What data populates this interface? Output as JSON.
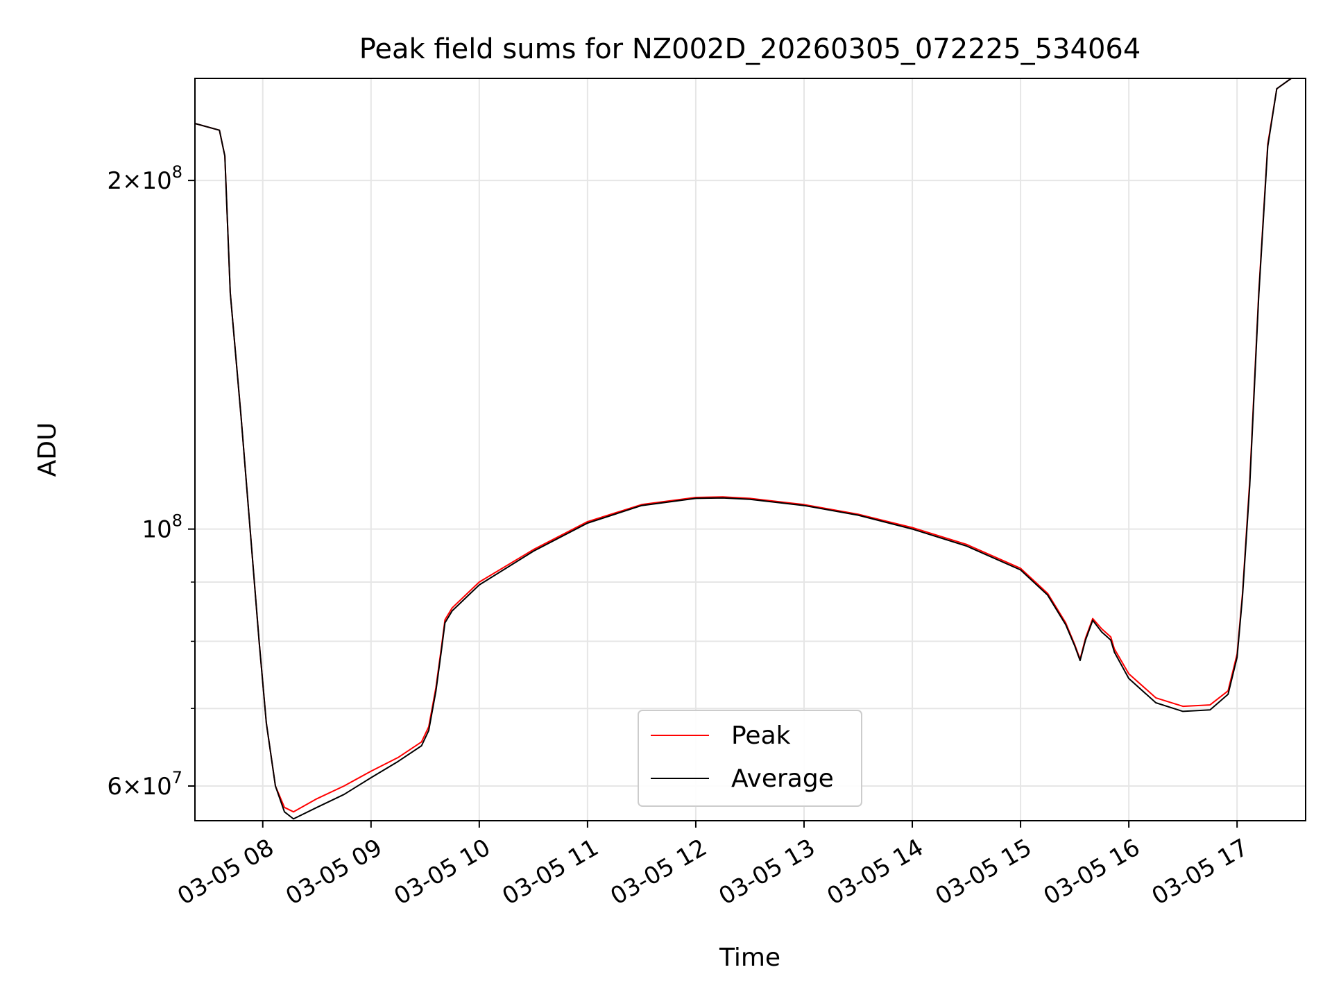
{
  "chart_data": {
    "type": "line",
    "title": "Peak field sums for NZ002D_20260305_072225_534064",
    "xlabel": "Time",
    "ylabel": "ADU",
    "yscale": "log",
    "xlim": [
      "2026-03-05 07:22:25",
      "2026-03-05 17:38:00"
    ],
    "ylim": [
      56000000,
      245000000
    ],
    "grid": true,
    "legend": {
      "position": "lower center"
    },
    "x_ticks": [
      "03-05 08",
      "03-05 09",
      "03-05 10",
      "03-05 11",
      "03-05 12",
      "03-05 13",
      "03-05 14",
      "03-05 15",
      "03-05 16",
      "03-05 17"
    ],
    "y_major_ticks": [
      {
        "value": 60000000,
        "mantissa": "6",
        "exponent": "7"
      },
      {
        "value": 100000000,
        "mantissa": "",
        "exponent": "8"
      },
      {
        "value": 200000000,
        "mantissa": "2",
        "exponent": "8"
      }
    ],
    "y_minor_ticks": [
      70000000,
      80000000,
      90000000
    ],
    "series": [
      {
        "name": "Peak",
        "color": "#ff0000",
        "points": [
          [
            "2026-03-05 07:22:25",
            224000000
          ],
          [
            "2026-03-05 07:36:00",
            221000000
          ],
          [
            "2026-03-05 07:39:00",
            210000000
          ],
          [
            "2026-03-05 07:42:00",
            160000000
          ],
          [
            "2026-03-05 07:48:00",
            125000000
          ],
          [
            "2026-03-05 07:53:00",
            100000000
          ],
          [
            "2026-03-05 07:58:00",
            80000000
          ],
          [
            "2026-03-05 08:02:00",
            68000000
          ],
          [
            "2026-03-05 08:07:00",
            60000000
          ],
          [
            "2026-03-05 08:12:00",
            57500000
          ],
          [
            "2026-03-05 08:17:00",
            57000000
          ],
          [
            "2026-03-05 08:30:00",
            58500000
          ],
          [
            "2026-03-05 08:45:00",
            60000000
          ],
          [
            "2026-03-05 09:00:00",
            61800000
          ],
          [
            "2026-03-05 09:15:00",
            63500000
          ],
          [
            "2026-03-05 09:28:00",
            65500000
          ],
          [
            "2026-03-05 09:32:00",
            67500000
          ],
          [
            "2026-03-05 09:36:00",
            73000000
          ],
          [
            "2026-03-05 09:39:00",
            79000000
          ],
          [
            "2026-03-05 09:41:00",
            83500000
          ],
          [
            "2026-03-05 09:45:00",
            85500000
          ],
          [
            "2026-03-05 10:00:00",
            90000000
          ],
          [
            "2026-03-05 10:30:00",
            96000000
          ],
          [
            "2026-03-05 11:00:00",
            101500000
          ],
          [
            "2026-03-05 11:30:00",
            105000000
          ],
          [
            "2026-03-05 12:00:00",
            106500000
          ],
          [
            "2026-03-05 12:15:00",
            106600000
          ],
          [
            "2026-03-05 12:30:00",
            106300000
          ],
          [
            "2026-03-05 13:00:00",
            105000000
          ],
          [
            "2026-03-05 13:30:00",
            103000000
          ],
          [
            "2026-03-05 14:00:00",
            100300000
          ],
          [
            "2026-03-05 14:30:00",
            97000000
          ],
          [
            "2026-03-05 15:00:00",
            92500000
          ],
          [
            "2026-03-05 15:15:00",
            88000000
          ],
          [
            "2026-03-05 15:25:00",
            83000000
          ],
          [
            "2026-03-05 15:30:00",
            79500000
          ],
          [
            "2026-03-05 15:33:00",
            77200000
          ],
          [
            "2026-03-05 15:36:00",
            80500000
          ],
          [
            "2026-03-05 15:40:00",
            83700000
          ],
          [
            "2026-03-05 15:45:00",
            82000000
          ],
          [
            "2026-03-05 15:50:00",
            80700000
          ],
          [
            "2026-03-05 15:52:00",
            78800000
          ],
          [
            "2026-03-05 16:00:00",
            75000000
          ],
          [
            "2026-03-05 16:15:00",
            71500000
          ],
          [
            "2026-03-05 16:30:00",
            70300000
          ],
          [
            "2026-03-05 16:45:00",
            70500000
          ],
          [
            "2026-03-05 16:55:00",
            72500000
          ],
          [
            "2026-03-05 17:00:00",
            78000000
          ],
          [
            "2026-03-05 17:03:00",
            88000000
          ],
          [
            "2026-03-05 17:07:00",
            110000000
          ],
          [
            "2026-03-05 17:12:00",
            160000000
          ],
          [
            "2026-03-05 17:17:00",
            215000000
          ],
          [
            "2026-03-05 17:22:00",
            240000000
          ],
          [
            "2026-03-05 17:30:00",
            245000000
          ],
          [
            "2026-03-05 17:38:00",
            245000000
          ]
        ]
      },
      {
        "name": "Average",
        "color": "#000000",
        "points": [
          [
            "2026-03-05 07:22:25",
            224000000
          ],
          [
            "2026-03-05 07:36:00",
            221000000
          ],
          [
            "2026-03-05 07:39:00",
            210000000
          ],
          [
            "2026-03-05 07:42:00",
            160000000
          ],
          [
            "2026-03-05 07:48:00",
            125000000
          ],
          [
            "2026-03-05 07:53:00",
            100000000
          ],
          [
            "2026-03-05 07:58:00",
            80000000
          ],
          [
            "2026-03-05 08:02:00",
            68000000
          ],
          [
            "2026-03-05 08:07:00",
            60000000
          ],
          [
            "2026-03-05 08:12:00",
            57000000
          ],
          [
            "2026-03-05 08:17:00",
            56200000
          ],
          [
            "2026-03-05 08:30:00",
            57500000
          ],
          [
            "2026-03-05 08:45:00",
            59000000
          ],
          [
            "2026-03-05 09:00:00",
            61000000
          ],
          [
            "2026-03-05 09:15:00",
            63000000
          ],
          [
            "2026-03-05 09:28:00",
            65000000
          ],
          [
            "2026-03-05 09:32:00",
            67000000
          ],
          [
            "2026-03-05 09:36:00",
            72500000
          ],
          [
            "2026-03-05 09:39:00",
            78500000
          ],
          [
            "2026-03-05 09:41:00",
            83000000
          ],
          [
            "2026-03-05 09:45:00",
            85000000
          ],
          [
            "2026-03-05 10:00:00",
            89500000
          ],
          [
            "2026-03-05 10:30:00",
            95700000
          ],
          [
            "2026-03-05 11:00:00",
            101200000
          ],
          [
            "2026-03-05 11:30:00",
            104800000
          ],
          [
            "2026-03-05 12:00:00",
            106300000
          ],
          [
            "2026-03-05 12:15:00",
            106400000
          ],
          [
            "2026-03-05 12:30:00",
            106100000
          ],
          [
            "2026-03-05 13:00:00",
            104800000
          ],
          [
            "2026-03-05 13:30:00",
            102800000
          ],
          [
            "2026-03-05 14:00:00",
            100000000
          ],
          [
            "2026-03-05 14:30:00",
            96700000
          ],
          [
            "2026-03-05 15:00:00",
            92200000
          ],
          [
            "2026-03-05 15:15:00",
            87700000
          ],
          [
            "2026-03-05 15:25:00",
            82700000
          ],
          [
            "2026-03-05 15:30:00",
            79300000
          ],
          [
            "2026-03-05 15:33:00",
            77000000
          ],
          [
            "2026-03-05 15:36:00",
            80200000
          ],
          [
            "2026-03-05 15:40:00",
            83400000
          ],
          [
            "2026-03-05 15:45:00",
            81500000
          ],
          [
            "2026-03-05 15:50:00",
            80200000
          ],
          [
            "2026-03-05 15:52:00",
            78300000
          ],
          [
            "2026-03-05 16:00:00",
            74300000
          ],
          [
            "2026-03-05 16:15:00",
            70800000
          ],
          [
            "2026-03-05 16:30:00",
            69600000
          ],
          [
            "2026-03-05 16:45:00",
            69800000
          ],
          [
            "2026-03-05 16:55:00",
            72000000
          ],
          [
            "2026-03-05 17:00:00",
            77500000
          ],
          [
            "2026-03-05 17:03:00",
            87500000
          ],
          [
            "2026-03-05 17:07:00",
            109000000
          ],
          [
            "2026-03-05 17:12:00",
            159000000
          ],
          [
            "2026-03-05 17:17:00",
            214000000
          ],
          [
            "2026-03-05 17:22:00",
            240000000
          ],
          [
            "2026-03-05 17:30:00",
            245000000
          ],
          [
            "2026-03-05 17:38:00",
            245000000
          ]
        ]
      }
    ]
  }
}
